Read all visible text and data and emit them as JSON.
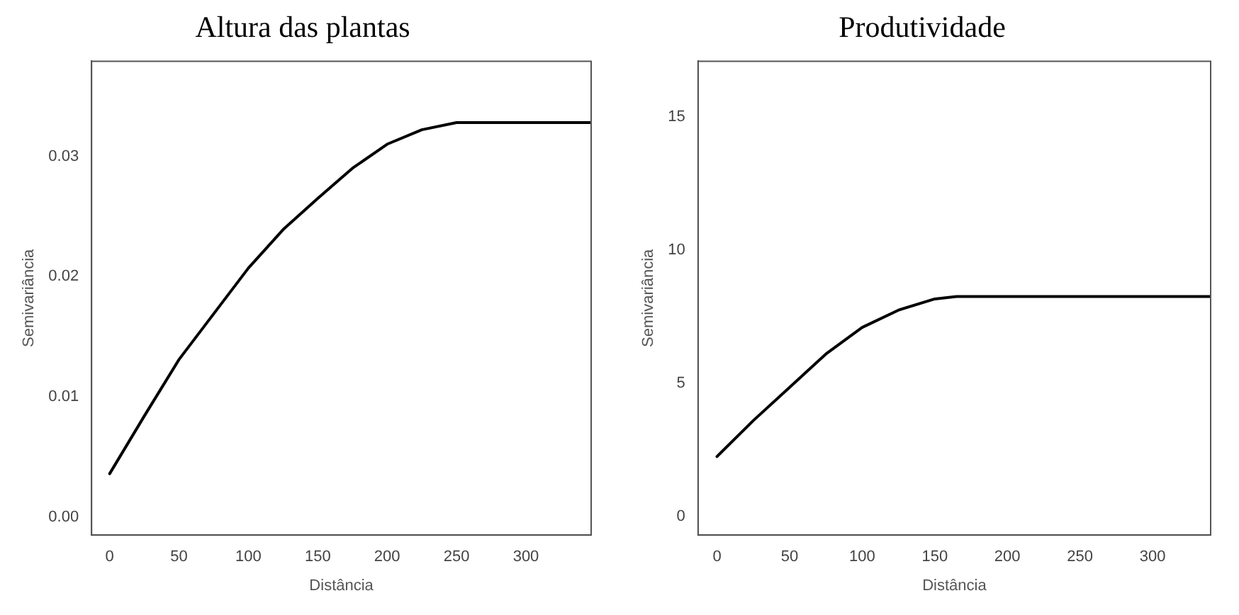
{
  "chart_data": [
    {
      "type": "line",
      "title": "Altura das plantas",
      "xlabel": "Distância",
      "ylabel": "Semivariância",
      "x": [
        0,
        25,
        50,
        75,
        100,
        125,
        150,
        175,
        200,
        225,
        250,
        347
      ],
      "values": [
        0.0036,
        0.0084,
        0.0131,
        0.0169,
        0.0207,
        0.0239,
        0.0265,
        0.029,
        0.031,
        0.0322,
        0.0328,
        0.0328
      ],
      "color": "#000000",
      "xlim": [
        -13,
        347
      ],
      "xticks": [
        0,
        50,
        100,
        150,
        200,
        250,
        300
      ],
      "ylim": [
        -0.0015,
        0.0379
      ],
      "yticks": [
        {
          "value": 0,
          "label": "0.00"
        },
        {
          "value": 0.01,
          "label": "0.01"
        },
        {
          "value": 0.02,
          "label": "0.02"
        },
        {
          "value": 0.03,
          "label": "0.03"
        }
      ],
      "grid": false,
      "legend": false
    },
    {
      "type": "line",
      "title": "Produtividade",
      "xlabel": "Distância",
      "ylabel": "Semivariância",
      "x": [
        0,
        25,
        50,
        75,
        100,
        125,
        150,
        165,
        340
      ],
      "values": [
        2.25,
        3.6,
        4.85,
        6.1,
        7.1,
        7.75,
        8.17,
        8.26,
        8.26
      ],
      "color": "#000000",
      "xlim": [
        -13,
        340
      ],
      "xticks": [
        0,
        50,
        100,
        150,
        200,
        250,
        300
      ],
      "ylim": [
        -0.7,
        17.1
      ],
      "yticks": [
        0,
        5,
        10,
        15
      ],
      "grid": false,
      "legend": false
    }
  ]
}
